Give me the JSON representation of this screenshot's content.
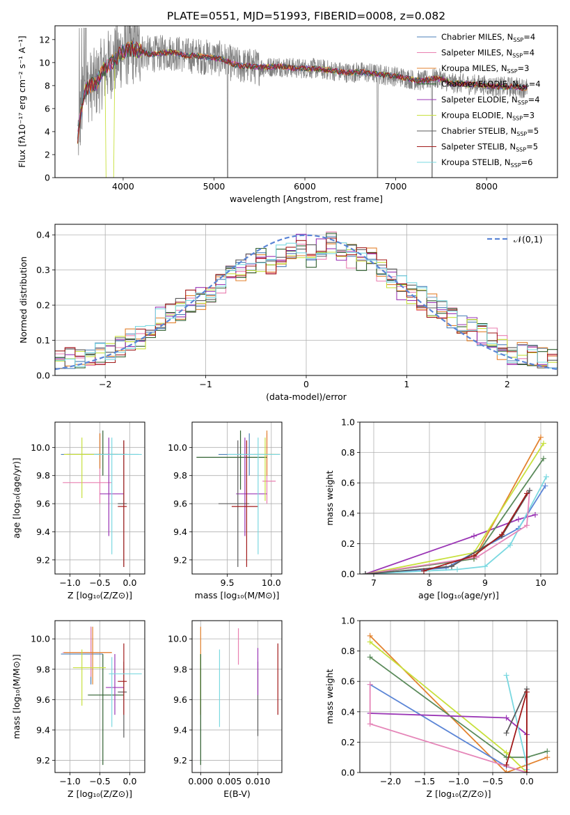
{
  "figure": {
    "title": "PLATE=0551, MJD=51993, FIBERID=0008, z=0.082"
  },
  "colors": {
    "chabrier_miles": "#4a7fb8",
    "salpeter_miles": "#e97fb0",
    "kroupa_miles": "#e3822e",
    "chabrier_elodie": "#2e5f2e",
    "salpeter_elodie": "#9a35b5",
    "kroupa_elodie": "#c7e03c",
    "chabrier_stelib": "#5a5a5a",
    "salpeter_stelib": "#a11a1a",
    "kroupa_stelib": "#7ad8e0",
    "data": "#808080",
    "n01": "#5b85d6",
    "line_blue": "#5b85d6",
    "line_green": "#5a8a5a",
    "line_purple": "#9a35b5",
    "line_pink": "#e585b8"
  },
  "chart_data": [
    {
      "id": "spectrum",
      "type": "line",
      "xlabel": "wavelength [Angstrom, rest frame]",
      "ylabel": "Flux [fλ10⁻¹⁷ erg cm⁻² s⁻¹ A⁻¹]",
      "xlim": [
        3250,
        8780
      ],
      "ylim": [
        0,
        13.2
      ],
      "xticks": [
        "4000",
        "5000",
        "6000",
        "7000",
        "8000"
      ],
      "yticks": [
        "0",
        "2",
        "4",
        "6",
        "8",
        "10",
        "12"
      ],
      "legend": {
        "placement": "top-right",
        "entries": [
          {
            "name": "Chabrier MILES, N",
            "sub": "SSP",
            "val": "=4",
            "color": "chabrier_miles"
          },
          {
            "name": "Salpeter MILES, N",
            "sub": "SSP",
            "val": "=4",
            "color": "salpeter_miles"
          },
          {
            "name": "Kroupa MILES, N",
            "sub": "SSP",
            "val": "=3",
            "color": "kroupa_miles"
          },
          {
            "name": "Chabrier ELODIE, N",
            "sub": "SSP",
            "val": "=4",
            "color": "chabrier_elodie"
          },
          {
            "name": "Salpeter ELODIE, N",
            "sub": "SSP",
            "val": "=4",
            "color": "salpeter_elodie"
          },
          {
            "name": "Kroupa ELODIE, N",
            "sub": "SSP",
            "val": "=3",
            "color": "kroupa_elodie"
          },
          {
            "name": "Chabrier STELIB, N",
            "sub": "SSP",
            "val": "=5",
            "color": "chabrier_stelib"
          },
          {
            "name": "Salpeter STELIB, N",
            "sub": "SSP",
            "val": "=5",
            "color": "salpeter_stelib"
          },
          {
            "name": "Kroupa STELIB, N",
            "sub": "SSP",
            "val": "=6",
            "color": "kroupa_stelib"
          }
        ]
      },
      "model_x": [
        3500,
        3550,
        3600,
        3700,
        3800,
        3900,
        4000,
        4100,
        4200,
        4300,
        4400,
        4500,
        4600,
        4700,
        4800,
        4900,
        5000,
        5100,
        5200,
        5300,
        5400,
        5500,
        5600,
        5700,
        5800,
        5900,
        6000,
        6100,
        6200,
        6300,
        6400,
        6500,
        6600,
        6700,
        6800,
        6900,
        7000,
        7100,
        7200,
        7300,
        7400,
        7500,
        7600,
        7700,
        7800,
        7900,
        8000,
        8100,
        8200,
        8300,
        8400
      ],
      "model_y": [
        3.5,
        6.5,
        7.8,
        8.2,
        9.5,
        10.2,
        11.0,
        11.2,
        11.0,
        10.7,
        10.8,
        10.9,
        10.8,
        10.6,
        10.6,
        10.5,
        10.4,
        10.3,
        9.9,
        9.7,
        9.7,
        9.6,
        9.6,
        9.7,
        9.6,
        9.5,
        9.5,
        9.5,
        9.4,
        9.3,
        9.2,
        9.1,
        9.2,
        9.1,
        9.0,
        8.9,
        8.8,
        8.7,
        8.5,
        8.4,
        8.6,
        8.6,
        8.2,
        8.2,
        8.1,
        8.1,
        8.0,
        7.9,
        7.9,
        7.9,
        7.8
      ]
    },
    {
      "id": "residuals",
      "type": "histogram",
      "xlabel": "(data-model)/error",
      "ylabel": "Normed distribution",
      "xlim": [
        -2.5,
        2.5
      ],
      "ylim": [
        0,
        0.43
      ],
      "xticks": [
        "−2",
        "−1",
        "0",
        "1",
        "2"
      ],
      "yticks": [
        "0.0",
        "0.1",
        "0.2",
        "0.3",
        "0.4"
      ],
      "grid": true,
      "legend": {
        "placement": "top-right",
        "label": "𝒩(0,1)"
      },
      "bin_edges": [
        -2.5,
        -2.4,
        -2.3,
        -2.2,
        -2.1,
        -2.0,
        -1.9,
        -1.8,
        -1.7,
        -1.6,
        -1.5,
        -1.4,
        -1.3,
        -1.2,
        -1.1,
        -1.0,
        -0.9,
        -0.8,
        -0.7,
        -0.6,
        -0.5,
        -0.4,
        -0.3,
        -0.2,
        -0.1,
        0.0,
        0.1,
        0.2,
        0.3,
        0.4,
        0.5,
        0.6,
        0.7,
        0.8,
        0.9,
        1.0,
        1.1,
        1.2,
        1.3,
        1.4,
        1.5,
        1.6,
        1.7,
        1.8,
        1.9,
        2.0,
        2.1,
        2.2,
        2.3,
        2.4,
        2.5
      ],
      "series_base": [
        0.04,
        0.045,
        0.05,
        0.055,
        0.06,
        0.065,
        0.08,
        0.1,
        0.11,
        0.13,
        0.16,
        0.17,
        0.19,
        0.21,
        0.22,
        0.24,
        0.26,
        0.28,
        0.3,
        0.32,
        0.33,
        0.32,
        0.34,
        0.35,
        0.37,
        0.34,
        0.36,
        0.38,
        0.36,
        0.34,
        0.33,
        0.33,
        0.3,
        0.28,
        0.25,
        0.23,
        0.22,
        0.2,
        0.18,
        0.16,
        0.14,
        0.13,
        0.12,
        0.1,
        0.08,
        0.065,
        0.06,
        0.055,
        0.045,
        0.04
      ]
    },
    {
      "id": "age_vs_Z",
      "type": "errorbar",
      "xlabel": "Z [log₁₀(Z/Z⊙)]",
      "ylabel": "age  [log₁₀(age/yr)]",
      "xlim": [
        -1.25,
        0.25
      ],
      "ylim": [
        9.1,
        10.18
      ],
      "xticks": [
        "−1.0",
        "−0.5",
        "0.0"
      ],
      "yticks": [
        "9.2",
        "9.4",
        "9.6",
        "9.8",
        "10.0"
      ],
      "grid": true,
      "points": [
        {
          "x": -0.5,
          "y": 9.95,
          "xlo": -1.15,
          "xhi": 0.15,
          "ylo": 9.85,
          "yhi": 10.1,
          "color": "chabrier_miles"
        },
        {
          "x": -0.5,
          "y": 9.75,
          "xlo": -1.12,
          "xhi": -0.3,
          "ylo": 9.6,
          "yhi": 10.1,
          "color": "salpeter_miles"
        },
        {
          "x": -0.5,
          "y": 9.95,
          "xlo": -1.1,
          "xhi": -0.2,
          "ylo": 9.85,
          "yhi": 10.1,
          "color": "kroupa_miles"
        },
        {
          "x": -0.45,
          "y": 9.95,
          "xlo": -1.05,
          "xhi": -0.05,
          "ylo": 9.8,
          "yhi": 10.12,
          "color": "chabrier_elodie"
        },
        {
          "x": -0.35,
          "y": 9.67,
          "xlo": -0.5,
          "xhi": -0.1,
          "ylo": 9.37,
          "yhi": 10.07,
          "color": "salpeter_elodie"
        },
        {
          "x": -0.8,
          "y": 9.95,
          "xlo": -1.1,
          "xhi": -0.5,
          "ylo": 9.64,
          "yhi": 10.07,
          "color": "kroupa_elodie"
        },
        {
          "x": -0.1,
          "y": 9.6,
          "xlo": -0.2,
          "xhi": -0.05,
          "ylo": 9.15,
          "yhi": 10.05,
          "color": "chabrier_stelib"
        },
        {
          "x": -0.1,
          "y": 9.58,
          "xlo": -0.2,
          "xhi": -0.05,
          "ylo": 9.15,
          "yhi": 10.05,
          "color": "salpeter_stelib"
        },
        {
          "x": -0.3,
          "y": 9.95,
          "xlo": -0.6,
          "xhi": 0.2,
          "ylo": 9.24,
          "yhi": 10.07,
          "color": "kroupa_stelib"
        }
      ]
    },
    {
      "id": "age_vs_mass",
      "type": "errorbar",
      "xlabel": "mass [log₁₀(M/M⊙)]",
      "ylabel": "",
      "xlim": [
        9.1,
        10.12
      ],
      "ylim": [
        9.1,
        10.18
      ],
      "xticks": [
        "9.5",
        "10.0"
      ],
      "yticks": [
        "9.2",
        "9.4",
        "9.6",
        "9.8",
        "10.0"
      ],
      "grid": true,
      "points": [
        {
          "x": 9.75,
          "y": 9.95,
          "xlo": 9.4,
          "xhi": 10.1,
          "ylo": 9.8,
          "yhi": 10.1,
          "color": "chabrier_miles"
        },
        {
          "x": 9.95,
          "y": 9.76,
          "xlo": 9.9,
          "xhi": 10.05,
          "ylo": 9.6,
          "yhi": 10.1,
          "color": "salpeter_miles"
        },
        {
          "x": 9.95,
          "y": 9.95,
          "xlo": 9.8,
          "xhi": 10.1,
          "ylo": 9.8,
          "yhi": 10.12,
          "color": "kroupa_miles"
        },
        {
          "x": 9.65,
          "y": 9.93,
          "xlo": 9.15,
          "xhi": 9.95,
          "ylo": 9.7,
          "yhi": 10.12,
          "color": "chabrier_elodie"
        },
        {
          "x": 9.7,
          "y": 9.67,
          "xlo": 9.6,
          "xhi": 9.95,
          "ylo": 9.37,
          "yhi": 10.07,
          "color": "salpeter_elodie"
        },
        {
          "x": 9.93,
          "y": 9.95,
          "xlo": 9.85,
          "xhi": 10.05,
          "ylo": 9.62,
          "yhi": 10.07,
          "color": "kroupa_elodie"
        },
        {
          "x": 9.62,
          "y": 9.6,
          "xlo": 9.4,
          "xhi": 9.75,
          "ylo": 9.15,
          "yhi": 10.05,
          "color": "chabrier_stelib"
        },
        {
          "x": 9.72,
          "y": 9.58,
          "xlo": 9.55,
          "xhi": 9.85,
          "ylo": 9.15,
          "yhi": 10.05,
          "color": "salpeter_stelib"
        },
        {
          "x": 9.85,
          "y": 9.95,
          "xlo": 9.5,
          "xhi": 10.1,
          "ylo": 9.24,
          "yhi": 10.07,
          "color": "kroupa_stelib"
        }
      ]
    },
    {
      "id": "massweight_vs_age",
      "type": "line",
      "xlabel": "age  [log₁₀(age/yr)]",
      "ylabel": "mass weight",
      "xlim": [
        6.75,
        10.3
      ],
      "ylim": [
        0,
        1.0
      ],
      "xticks": [
        "7",
        "8",
        "9",
        "10"
      ],
      "yticks": [
        "0.0",
        "0.2",
        "0.4",
        "0.6",
        "0.8",
        "1.0"
      ],
      "grid": true,
      "series": [
        {
          "color": "line_purple",
          "x": [
            6.85,
            8.8,
            9.6,
            9.9
          ],
          "y": [
            0.0,
            0.25,
            0.36,
            0.39
          ]
        },
        {
          "color": "kroupa_miles",
          "x": [
            6.85,
            8.8,
            10.0
          ],
          "y": [
            0.0,
            0.1,
            0.9
          ]
        },
        {
          "color": "kroupa_elodie",
          "x": [
            6.85,
            8.8,
            10.05
          ],
          "y": [
            0.0,
            0.14,
            0.86
          ]
        },
        {
          "color": "line_green",
          "x": [
            6.85,
            8.8,
            10.05
          ],
          "y": [
            0.0,
            0.1,
            0.76
          ]
        },
        {
          "color": "line_blue",
          "x": [
            6.85,
            8.3,
            9.6,
            10.08
          ],
          "y": [
            0.0,
            0.04,
            0.3,
            0.58
          ]
        },
        {
          "color": "kroupa_stelib",
          "x": [
            6.85,
            8.5,
            9.0,
            9.45,
            10.1
          ],
          "y": [
            0.0,
            0.03,
            0.05,
            0.19,
            0.64
          ]
        },
        {
          "color": "line_pink",
          "x": [
            6.85,
            8.85,
            9.75,
            9.8
          ],
          "y": [
            0.0,
            0.11,
            0.32,
            0.55
          ]
        },
        {
          "color": "chabrier_stelib",
          "x": [
            6.85,
            8.4,
            9.3,
            9.8
          ],
          "y": [
            0.0,
            0.05,
            0.25,
            0.55
          ]
        },
        {
          "color": "salpeter_stelib",
          "x": [
            7.9,
            8.8,
            9.3,
            9.75
          ],
          "y": [
            0.02,
            0.12,
            0.26,
            0.53
          ]
        }
      ]
    },
    {
      "id": "mass_vs_Z",
      "type": "errorbar",
      "xlabel": "Z [log₁₀(Z/Z⊙)]",
      "ylabel": "mass [log₁₀(M/M⊙)]",
      "xlim": [
        -1.25,
        0.25
      ],
      "ylim": [
        9.12,
        10.12
      ],
      "xticks": [
        "−1.0",
        "−0.5",
        "0.0"
      ],
      "yticks": [
        "9.2",
        "9.4",
        "9.6",
        "9.8",
        "10.0"
      ],
      "grid": true,
      "points": [
        {
          "x": -0.65,
          "y": 9.9,
          "xlo": -1.15,
          "xhi": -0.45,
          "ylo": 9.7,
          "yhi": 10.08,
          "color": "chabrier_miles"
        },
        {
          "x": -0.65,
          "y": 9.91,
          "xlo": -1.12,
          "xhi": -0.3,
          "ylo": 9.75,
          "yhi": 10.08,
          "color": "salpeter_miles"
        },
        {
          "x": -0.62,
          "y": 9.91,
          "xlo": -1.1,
          "xhi": -0.3,
          "ylo": 9.7,
          "yhi": 10.08,
          "color": "kroupa_miles"
        },
        {
          "x": -0.45,
          "y": 9.63,
          "xlo": -0.7,
          "xhi": -0.1,
          "ylo": 9.17,
          "yhi": 9.9,
          "color": "chabrier_elodie"
        },
        {
          "x": -0.25,
          "y": 9.68,
          "xlo": -0.4,
          "xhi": -0.1,
          "ylo": 9.5,
          "yhi": 9.9,
          "color": "salpeter_elodie"
        },
        {
          "x": -0.8,
          "y": 9.81,
          "xlo": -0.95,
          "xhi": -0.4,
          "ylo": 9.56,
          "yhi": 9.93,
          "color": "kroupa_elodie"
        },
        {
          "x": -0.1,
          "y": 9.65,
          "xlo": -0.2,
          "xhi": -0.05,
          "ylo": 9.35,
          "yhi": 9.85,
          "color": "chabrier_stelib"
        },
        {
          "x": -0.1,
          "y": 9.72,
          "xlo": -0.2,
          "xhi": -0.05,
          "ylo": 9.5,
          "yhi": 9.97,
          "color": "salpeter_stelib"
        },
        {
          "x": -0.3,
          "y": 9.77,
          "xlo": -0.35,
          "xhi": 0.2,
          "ylo": 9.42,
          "yhi": 9.88,
          "color": "kroupa_stelib"
        }
      ]
    },
    {
      "id": "mass_vs_ebv",
      "type": "errorbar",
      "xlabel": "E(B-V)",
      "ylabel": "",
      "xlim": [
        -0.0015,
        0.0142
      ],
      "ylim": [
        9.12,
        10.12
      ],
      "xticks": [
        "0.000",
        "0.005",
        "0.010"
      ],
      "yticks": [
        "9.2",
        "9.4",
        "9.6",
        "9.8",
        "10.0"
      ],
      "grid": true,
      "points": [
        {
          "x": 0.0,
          "y": 9.85,
          "ylo": 9.5,
          "yhi": 10.08,
          "color": "kroupa_miles"
        },
        {
          "x": 0.0,
          "y": 9.8,
          "ylo": 9.55,
          "yhi": 9.9,
          "color": "kroupa_elodie"
        },
        {
          "x": 0.0,
          "y": 9.5,
          "ylo": 9.17,
          "yhi": 9.9,
          "color": "chabrier_elodie"
        },
        {
          "x": 0.0033,
          "y": 9.65,
          "ylo": 9.42,
          "yhi": 9.93,
          "color": "kroupa_stelib"
        },
        {
          "x": 0.0066,
          "y": 9.95,
          "ylo": 9.83,
          "yhi": 10.07,
          "color": "salpeter_miles"
        },
        {
          "x": 0.01,
          "y": 9.6,
          "ylo": 9.36,
          "yhi": 9.85,
          "color": "chabrier_stelib"
        },
        {
          "x": 0.01,
          "y": 9.8,
          "ylo": 9.63,
          "yhi": 9.94,
          "color": "salpeter_elodie"
        },
        {
          "x": 0.0135,
          "y": 9.75,
          "ylo": 9.5,
          "yhi": 9.97,
          "color": "salpeter_stelib"
        }
      ]
    },
    {
      "id": "massweight_vs_Z",
      "type": "line",
      "xlabel": "Z [log₁₀(Z/Z⊙)]",
      "ylabel": "mass weight",
      "xlim": [
        -2.45,
        0.45
      ],
      "ylim": [
        0,
        1.0
      ],
      "xticks": [
        "−2.0",
        "−1.5",
        "−1.0",
        "−0.5",
        "0.0"
      ],
      "yticks": [
        "0.0",
        "0.2",
        "0.4",
        "0.6",
        "0.8",
        "1.0"
      ],
      "grid": true,
      "series": [
        {
          "color": "kroupa_miles",
          "x": [
            -2.3,
            -0.3,
            0.3
          ],
          "y": [
            0.9,
            0.0,
            0.1
          ]
        },
        {
          "color": "kroupa_elodie",
          "x": [
            -2.3,
            -0.3,
            0.0
          ],
          "y": [
            0.86,
            0.13,
            0.0
          ]
        },
        {
          "color": "line_green",
          "x": [
            -2.3,
            -0.3,
            0.0,
            0.3
          ],
          "y": [
            0.76,
            0.1,
            0.1,
            0.14
          ]
        },
        {
          "color": "line_blue",
          "x": [
            -2.3,
            -0.3,
            0.0
          ],
          "y": [
            0.58,
            0.04,
            0.0
          ]
        },
        {
          "color": "line_purple",
          "x": [
            -2.3,
            -0.3,
            0.0
          ],
          "y": [
            0.39,
            0.36,
            0.25
          ]
        },
        {
          "color": "line_pink",
          "x": [
            -2.3,
            -2.3,
            0.0
          ],
          "y": [
            0.58,
            0.32,
            0.0
          ]
        },
        {
          "color": "kroupa_stelib",
          "x": [
            -0.3,
            0.0,
            0.0
          ],
          "y": [
            0.64,
            0.05,
            0.02
          ]
        },
        {
          "color": "chabrier_stelib",
          "x": [
            -0.3,
            0.0,
            0.0
          ],
          "y": [
            0.26,
            0.55,
            0.0
          ]
        },
        {
          "color": "salpeter_stelib",
          "x": [
            -0.3,
            0.0,
            0.0
          ],
          "y": [
            0.05,
            0.53,
            0.0
          ]
        }
      ]
    }
  ]
}
